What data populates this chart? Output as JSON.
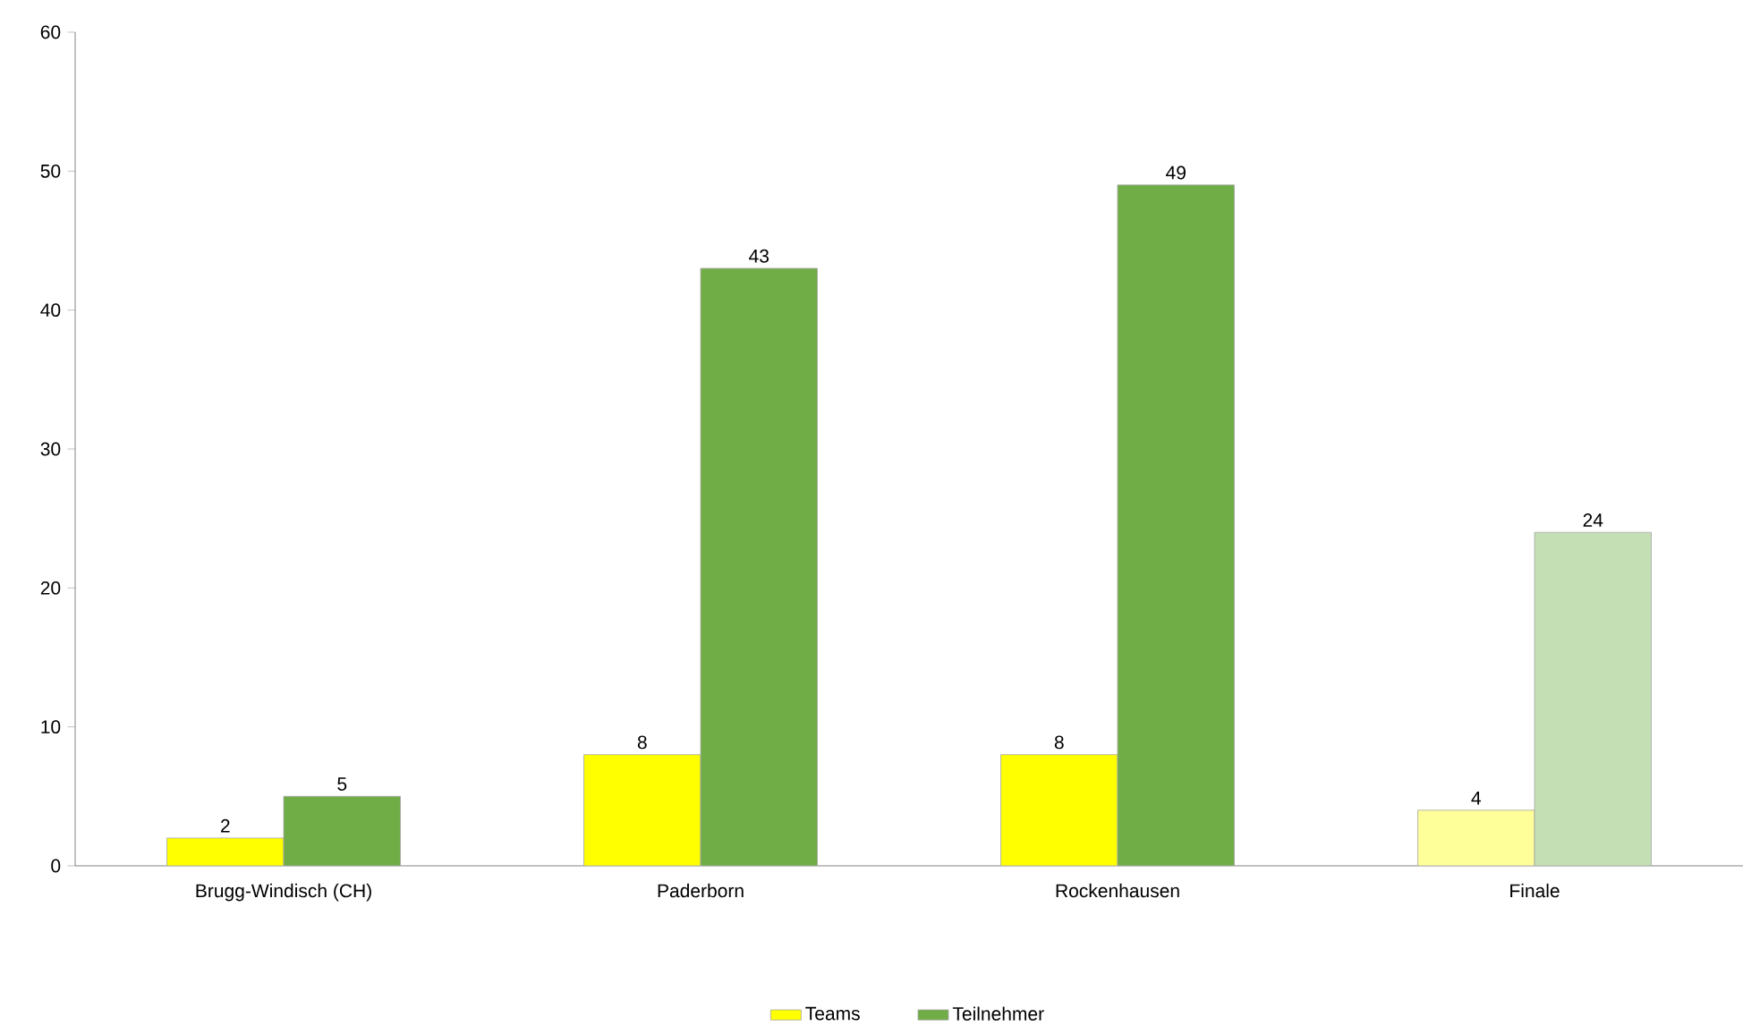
{
  "chart_data": {
    "type": "bar",
    "categories": [
      "Brugg-Windisch (CH)",
      "Paderborn",
      "Rockenhausen",
      "Finale"
    ],
    "series": [
      {
        "name": "Teams",
        "color": "#ffff00",
        "colors": [
          "#ffff00",
          "#ffff00",
          "#ffff00",
          "#ffff99"
        ],
        "values": [
          2,
          8,
          8,
          4
        ]
      },
      {
        "name": "Teilnehmer",
        "color": "#70ad47",
        "colors": [
          "#70ad47",
          "#70ad47",
          "#70ad47",
          "#c4dfb3"
        ],
        "values": [
          5,
          43,
          49,
          24
        ]
      }
    ],
    "ylim": [
      0,
      60
    ],
    "yticks": [
      0,
      10,
      20,
      30,
      40,
      50,
      60
    ],
    "data_labels": true,
    "legend": "bottom"
  }
}
